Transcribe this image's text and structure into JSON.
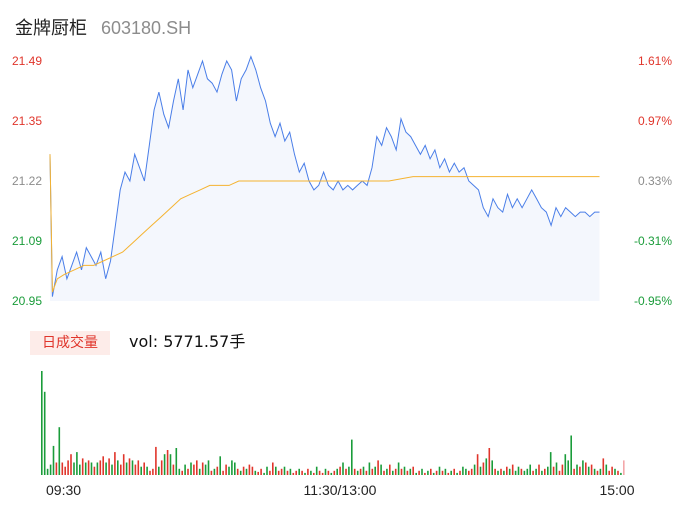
{
  "header": {
    "name": "金牌厨柜",
    "code": "603180.SH"
  },
  "volume_panel": {
    "tag_label": "日成交量",
    "vol_prefix": "vol: ",
    "vol_value": "5771.57",
    "vol_unit": "手"
  },
  "colors": {
    "price_line": "#4a7ee8",
    "price_fill": "#f4f7fd",
    "avg_line": "#f5b330",
    "up": "#e0352b",
    "down": "#1a9c3a",
    "flat": "#8c8c8c",
    "last_bar": "#f4a7a9"
  },
  "chart_data": {
    "type": "line",
    "title": "",
    "y_price_ticks": [
      "21.49",
      "21.35",
      "21.22",
      "21.09",
      "20.95"
    ],
    "y_pct_ticks": [
      "1.61%",
      "0.97%",
      "0.33%",
      "-0.31%",
      "-0.95%"
    ],
    "ylim": [
      20.95,
      21.49
    ],
    "prev_close": 21.15,
    "x_tick_labels": [
      "09:30",
      "11:30/13:00",
      "15:00"
    ],
    "session_points": 241,
    "price_series": [
      [
        0,
        21.28
      ],
      [
        1,
        20.96
      ],
      [
        3,
        21.02
      ],
      [
        5,
        21.05
      ],
      [
        7,
        21.0
      ],
      [
        9,
        21.03
      ],
      [
        11,
        21.06
      ],
      [
        13,
        21.02
      ],
      [
        15,
        21.07
      ],
      [
        17,
        21.05
      ],
      [
        19,
        21.03
      ],
      [
        21,
        21.06
      ],
      [
        23,
        21.0
      ],
      [
        25,
        21.04
      ],
      [
        27,
        21.12
      ],
      [
        29,
        21.2
      ],
      [
        31,
        21.24
      ],
      [
        33,
        21.22
      ],
      [
        35,
        21.28
      ],
      [
        37,
        21.25
      ],
      [
        39,
        21.22
      ],
      [
        41,
        21.3
      ],
      [
        43,
        21.38
      ],
      [
        45,
        21.42
      ],
      [
        47,
        21.37
      ],
      [
        49,
        21.34
      ],
      [
        51,
        21.4
      ],
      [
        53,
        21.45
      ],
      [
        55,
        21.38
      ],
      [
        57,
        21.47
      ],
      [
        59,
        21.43
      ],
      [
        61,
        21.46
      ],
      [
        63,
        21.49
      ],
      [
        65,
        21.45
      ],
      [
        67,
        21.44
      ],
      [
        69,
        21.42
      ],
      [
        71,
        21.46
      ],
      [
        73,
        21.49
      ],
      [
        75,
        21.47
      ],
      [
        77,
        21.4
      ],
      [
        79,
        21.45
      ],
      [
        81,
        21.47
      ],
      [
        83,
        21.5
      ],
      [
        85,
        21.47
      ],
      [
        87,
        21.43
      ],
      [
        89,
        21.4
      ],
      [
        91,
        21.35
      ],
      [
        93,
        21.32
      ],
      [
        95,
        21.35
      ],
      [
        97,
        21.31
      ],
      [
        99,
        21.33
      ],
      [
        101,
        21.28
      ],
      [
        103,
        21.24
      ],
      [
        105,
        21.26
      ],
      [
        107,
        21.22
      ],
      [
        109,
        21.2
      ],
      [
        111,
        21.21
      ],
      [
        113,
        21.24
      ],
      [
        115,
        21.21
      ],
      [
        117,
        21.2
      ],
      [
        119,
        21.22
      ],
      [
        121,
        21.2
      ],
      [
        123,
        21.21
      ],
      [
        125,
        21.2
      ],
      [
        127,
        21.21
      ],
      [
        129,
        21.22
      ],
      [
        131,
        21.21
      ],
      [
        133,
        21.25
      ],
      [
        135,
        21.32
      ],
      [
        137,
        21.3
      ],
      [
        139,
        21.34
      ],
      [
        141,
        21.32
      ],
      [
        143,
        21.29
      ],
      [
        145,
        21.36
      ],
      [
        147,
        21.33
      ],
      [
        149,
        21.32
      ],
      [
        151,
        21.3
      ],
      [
        153,
        21.28
      ],
      [
        155,
        21.3
      ],
      [
        157,
        21.27
      ],
      [
        159,
        21.29
      ],
      [
        161,
        21.25
      ],
      [
        163,
        21.27
      ],
      [
        165,
        21.24
      ],
      [
        167,
        21.26
      ],
      [
        169,
        21.24
      ],
      [
        171,
        21.25
      ],
      [
        173,
        21.22
      ],
      [
        175,
        21.21
      ],
      [
        177,
        21.2
      ],
      [
        179,
        21.16
      ],
      [
        181,
        21.14
      ],
      [
        183,
        21.18
      ],
      [
        185,
        21.16
      ],
      [
        187,
        21.15
      ],
      [
        189,
        21.19
      ],
      [
        191,
        21.16
      ],
      [
        193,
        21.18
      ],
      [
        195,
        21.16
      ],
      [
        197,
        21.18
      ],
      [
        199,
        21.2
      ],
      [
        201,
        21.18
      ],
      [
        203,
        21.16
      ],
      [
        205,
        21.15
      ],
      [
        207,
        21.12
      ],
      [
        209,
        21.16
      ],
      [
        211,
        21.14
      ],
      [
        213,
        21.16
      ],
      [
        215,
        21.15
      ],
      [
        217,
        21.14
      ],
      [
        219,
        21.15
      ],
      [
        221,
        21.15
      ],
      [
        223,
        21.14
      ],
      [
        225,
        21.15
      ],
      [
        227,
        21.15
      ]
    ],
    "avg_series": [
      [
        0,
        21.28
      ],
      [
        1,
        20.97
      ],
      [
        3,
        21.0
      ],
      [
        6,
        21.01
      ],
      [
        10,
        21.02
      ],
      [
        14,
        21.03
      ],
      [
        18,
        21.03
      ],
      [
        22,
        21.04
      ],
      [
        26,
        21.05
      ],
      [
        30,
        21.06
      ],
      [
        34,
        21.08
      ],
      [
        38,
        21.1
      ],
      [
        42,
        21.12
      ],
      [
        46,
        21.14
      ],
      [
        50,
        21.16
      ],
      [
        54,
        21.18
      ],
      [
        58,
        21.19
      ],
      [
        62,
        21.2
      ],
      [
        66,
        21.21
      ],
      [
        70,
        21.21
      ],
      [
        74,
        21.21
      ],
      [
        78,
        21.22
      ],
      [
        82,
        21.22
      ],
      [
        86,
        21.22
      ],
      [
        90,
        21.22
      ],
      [
        100,
        21.22
      ],
      [
        110,
        21.22
      ],
      [
        120,
        21.22
      ],
      [
        130,
        21.22
      ],
      [
        140,
        21.22
      ],
      [
        150,
        21.23
      ],
      [
        160,
        21.23
      ],
      [
        170,
        21.23
      ],
      [
        180,
        21.23
      ],
      [
        190,
        21.23
      ],
      [
        200,
        21.23
      ],
      [
        210,
        21.23
      ],
      [
        220,
        21.23
      ],
      [
        227,
        21.23
      ]
    ],
    "volume_ylim": [
      0,
      100
    ],
    "volume_bars": [
      [
        0,
        100,
        "d"
      ],
      [
        1,
        80,
        "d"
      ],
      [
        2,
        6,
        "d"
      ],
      [
        3,
        10,
        "d"
      ],
      [
        4,
        28,
        "d"
      ],
      [
        5,
        12,
        "u"
      ],
      [
        6,
        46,
        "d"
      ],
      [
        7,
        12,
        "u"
      ],
      [
        8,
        8,
        "u"
      ],
      [
        9,
        14,
        "u"
      ],
      [
        10,
        20,
        "u"
      ],
      [
        11,
        12,
        "d"
      ],
      [
        12,
        22,
        "d"
      ],
      [
        13,
        10,
        "d"
      ],
      [
        14,
        16,
        "u"
      ],
      [
        15,
        12,
        "d"
      ],
      [
        16,
        14,
        "u"
      ],
      [
        17,
        12,
        "d"
      ],
      [
        18,
        8,
        "u"
      ],
      [
        19,
        12,
        "d"
      ],
      [
        20,
        14,
        "u"
      ],
      [
        21,
        18,
        "u"
      ],
      [
        22,
        12,
        "d"
      ],
      [
        23,
        16,
        "u"
      ],
      [
        24,
        10,
        "d"
      ],
      [
        25,
        22,
        "u"
      ],
      [
        26,
        14,
        "d"
      ],
      [
        27,
        10,
        "u"
      ],
      [
        28,
        20,
        "u"
      ],
      [
        29,
        12,
        "d"
      ],
      [
        30,
        16,
        "u"
      ],
      [
        31,
        14,
        "d"
      ],
      [
        32,
        10,
        "u"
      ],
      [
        33,
        14,
        "u"
      ],
      [
        34,
        8,
        "d"
      ],
      [
        35,
        12,
        "u"
      ],
      [
        36,
        8,
        "d"
      ],
      [
        37,
        4,
        "u"
      ],
      [
        38,
        6,
        "u"
      ],
      [
        39,
        27,
        "u"
      ],
      [
        40,
        8,
        "d"
      ],
      [
        41,
        14,
        "u"
      ],
      [
        42,
        20,
        "d"
      ],
      [
        43,
        24,
        "u"
      ],
      [
        44,
        20,
        "d"
      ],
      [
        45,
        10,
        "u"
      ],
      [
        46,
        26,
        "d"
      ],
      [
        47,
        6,
        "d"
      ],
      [
        48,
        4,
        "u"
      ],
      [
        49,
        10,
        "d"
      ],
      [
        50,
        6,
        "u"
      ],
      [
        51,
        12,
        "d"
      ],
      [
        52,
        10,
        "u"
      ],
      [
        53,
        14,
        "u"
      ],
      [
        54,
        6,
        "d"
      ],
      [
        55,
        12,
        "u"
      ],
      [
        56,
        10,
        "d"
      ],
      [
        57,
        14,
        "d"
      ],
      [
        58,
        4,
        "u"
      ],
      [
        59,
        6,
        "d"
      ],
      [
        60,
        8,
        "u"
      ],
      [
        61,
        18,
        "d"
      ],
      [
        62,
        4,
        "u"
      ],
      [
        63,
        10,
        "u"
      ],
      [
        64,
        8,
        "d"
      ],
      [
        65,
        14,
        "d"
      ],
      [
        66,
        12,
        "d"
      ],
      [
        67,
        6,
        "u"
      ],
      [
        68,
        4,
        "d"
      ],
      [
        69,
        8,
        "u"
      ],
      [
        70,
        6,
        "d"
      ],
      [
        71,
        10,
        "u"
      ],
      [
        72,
        8,
        "u"
      ],
      [
        73,
        4,
        "d"
      ],
      [
        74,
        3,
        "u"
      ],
      [
        75,
        6,
        "u"
      ],
      [
        76,
        2,
        "d"
      ],
      [
        77,
        8,
        "d"
      ],
      [
        78,
        4,
        "u"
      ],
      [
        79,
        12,
        "u"
      ],
      [
        80,
        8,
        "d"
      ],
      [
        81,
        4,
        "u"
      ],
      [
        82,
        6,
        "u"
      ],
      [
        83,
        8,
        "d"
      ],
      [
        84,
        4,
        "u"
      ],
      [
        85,
        6,
        "d"
      ],
      [
        86,
        2,
        "u"
      ],
      [
        87,
        4,
        "u"
      ],
      [
        88,
        6,
        "d"
      ],
      [
        89,
        4,
        "u"
      ],
      [
        90,
        2,
        "d"
      ],
      [
        91,
        6,
        "u"
      ],
      [
        92,
        4,
        "d"
      ],
      [
        93,
        2,
        "u"
      ],
      [
        94,
        8,
        "d"
      ],
      [
        95,
        4,
        "u"
      ],
      [
        96,
        2,
        "u"
      ],
      [
        97,
        6,
        "d"
      ],
      [
        98,
        4,
        "u"
      ],
      [
        99,
        2,
        "d"
      ],
      [
        100,
        4,
        "u"
      ],
      [
        101,
        6,
        "d"
      ],
      [
        102,
        8,
        "u"
      ],
      [
        103,
        12,
        "d"
      ],
      [
        104,
        6,
        "u"
      ],
      [
        105,
        8,
        "d"
      ],
      [
        106,
        34,
        "d"
      ],
      [
        107,
        6,
        "u"
      ],
      [
        108,
        4,
        "d"
      ],
      [
        109,
        6,
        "u"
      ],
      [
        110,
        8,
        "d"
      ],
      [
        111,
        4,
        "u"
      ],
      [
        112,
        12,
        "d"
      ],
      [
        113,
        6,
        "u"
      ],
      [
        114,
        8,
        "d"
      ],
      [
        115,
        14,
        "u"
      ],
      [
        116,
        10,
        "d"
      ],
      [
        117,
        4,
        "u"
      ],
      [
        118,
        6,
        "d"
      ],
      [
        119,
        10,
        "u"
      ],
      [
        120,
        4,
        "d"
      ],
      [
        121,
        6,
        "u"
      ],
      [
        122,
        12,
        "d"
      ],
      [
        123,
        6,
        "u"
      ],
      [
        124,
        8,
        "d"
      ],
      [
        125,
        4,
        "u"
      ],
      [
        126,
        6,
        "d"
      ],
      [
        127,
        8,
        "u"
      ],
      [
        128,
        2,
        "d"
      ],
      [
        129,
        4,
        "u"
      ],
      [
        130,
        6,
        "d"
      ],
      [
        131,
        2,
        "u"
      ],
      [
        132,
        4,
        "d"
      ],
      [
        133,
        6,
        "u"
      ],
      [
        134,
        2,
        "d"
      ],
      [
        135,
        4,
        "u"
      ],
      [
        136,
        8,
        "d"
      ],
      [
        137,
        4,
        "u"
      ],
      [
        138,
        6,
        "d"
      ],
      [
        139,
        2,
        "u"
      ],
      [
        140,
        4,
        "d"
      ],
      [
        141,
        6,
        "u"
      ],
      [
        142,
        2,
        "d"
      ],
      [
        143,
        4,
        "u"
      ],
      [
        144,
        8,
        "d"
      ],
      [
        145,
        6,
        "d"
      ],
      [
        146,
        4,
        "u"
      ],
      [
        147,
        6,
        "u"
      ],
      [
        148,
        10,
        "d"
      ],
      [
        149,
        20,
        "u"
      ],
      [
        150,
        8,
        "d"
      ],
      [
        151,
        12,
        "u"
      ],
      [
        152,
        16,
        "d"
      ],
      [
        153,
        26,
        "u"
      ],
      [
        154,
        14,
        "d"
      ],
      [
        155,
        6,
        "u"
      ],
      [
        156,
        4,
        "d"
      ],
      [
        157,
        6,
        "u"
      ],
      [
        158,
        4,
        "d"
      ],
      [
        159,
        8,
        "u"
      ],
      [
        160,
        6,
        "d"
      ],
      [
        161,
        10,
        "u"
      ],
      [
        162,
        4,
        "d"
      ],
      [
        163,
        8,
        "d"
      ],
      [
        164,
        6,
        "u"
      ],
      [
        165,
        4,
        "d"
      ],
      [
        166,
        6,
        "d"
      ],
      [
        167,
        10,
        "d"
      ],
      [
        168,
        4,
        "u"
      ],
      [
        169,
        6,
        "d"
      ],
      [
        170,
        10,
        "u"
      ],
      [
        171,
        4,
        "d"
      ],
      [
        172,
        6,
        "u"
      ],
      [
        173,
        8,
        "d"
      ],
      [
        174,
        22,
        "d"
      ],
      [
        175,
        8,
        "u"
      ],
      [
        176,
        12,
        "d"
      ],
      [
        177,
        4,
        "u"
      ],
      [
        178,
        10,
        "u"
      ],
      [
        179,
        20,
        "d"
      ],
      [
        180,
        14,
        "d"
      ],
      [
        181,
        38,
        "d"
      ],
      [
        182,
        6,
        "u"
      ],
      [
        183,
        10,
        "d"
      ],
      [
        184,
        8,
        "u"
      ],
      [
        185,
        14,
        "d"
      ],
      [
        186,
        12,
        "u"
      ],
      [
        187,
        8,
        "d"
      ],
      [
        188,
        10,
        "u"
      ],
      [
        189,
        6,
        "d"
      ],
      [
        190,
        4,
        "u"
      ],
      [
        191,
        6,
        "d"
      ],
      [
        192,
        16,
        "u"
      ],
      [
        193,
        10,
        "d"
      ],
      [
        194,
        4,
        "u"
      ],
      [
        195,
        8,
        "u"
      ],
      [
        196,
        6,
        "d"
      ],
      [
        197,
        4,
        "u"
      ],
      [
        198,
        2,
        "d"
      ],
      [
        199,
        14,
        "f"
      ]
    ]
  }
}
